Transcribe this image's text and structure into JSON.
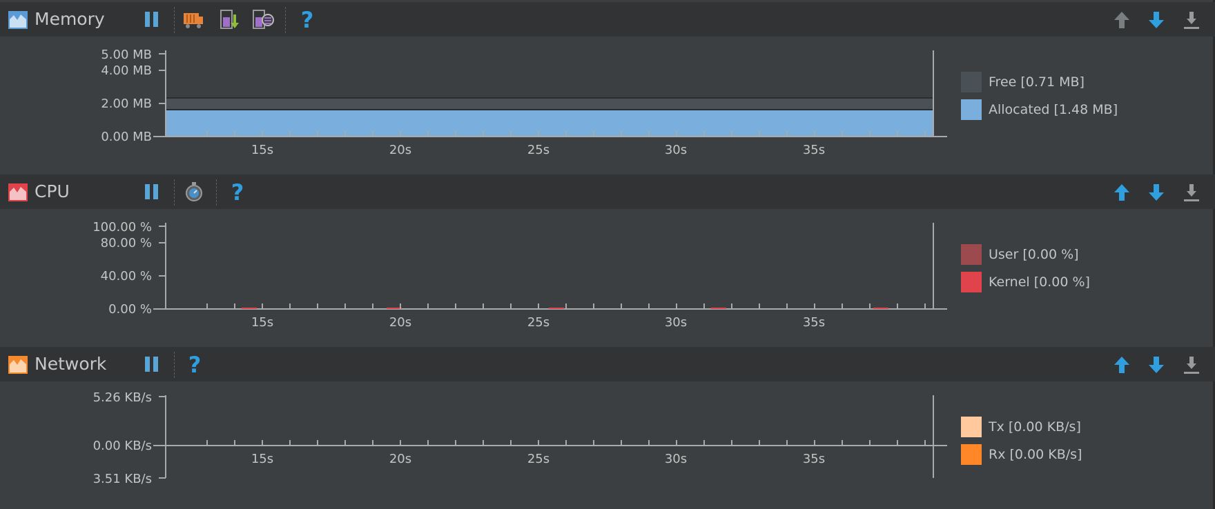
{
  "colors": {
    "background": "#3c3f41",
    "header": "#313335",
    "memory_accent": "#5b9bd5",
    "cpu_accent": "#e0434b",
    "network_accent": "#f58a2f",
    "toolbar_blue": "#2f9fe0"
  },
  "memory": {
    "title": "Memory",
    "icons": [
      "memory-chart-icon",
      "pause-icon",
      "gc-truck-icon",
      "dump-java-heap-icon",
      "allocation-tracker-icon",
      "help-icon"
    ],
    "legend": [
      {
        "label": "Free [0.71 MB]",
        "color": "#4a5156"
      },
      {
        "label": "Allocated [1.48 MB]",
        "color": "#7aaedd"
      }
    ]
  },
  "cpu": {
    "title": "CPU",
    "icons": [
      "cpu-chart-icon",
      "pause-icon",
      "method-trace-icon",
      "help-icon"
    ],
    "legend": [
      {
        "label": "User [0.00 %]",
        "color": "#9c4a4e"
      },
      {
        "label": "Kernel [0.00 %]",
        "color": "#e0434b"
      }
    ]
  },
  "network": {
    "title": "Network",
    "icons": [
      "network-chart-icon",
      "pause-icon",
      "help-icon"
    ],
    "legend": [
      {
        "label": "Tx [0.00 KB/s]",
        "color": "#ffc99d"
      },
      {
        "label": "Rx [0.00 KB/s]",
        "color": "#ff8728"
      }
    ]
  },
  "chart_data": [
    {
      "type": "area",
      "name": "memory",
      "x_ticks": [
        "15s",
        "20s",
        "25s",
        "30s",
        "35s"
      ],
      "y_ticks": [
        "5.00 MB",
        "4.00 MB",
        "2.00 MB",
        "0.00 MB"
      ],
      "ylim": [
        0,
        5
      ],
      "series": [
        {
          "name": "Free",
          "values": [
            0.71
          ]
        },
        {
          "name": "Allocated",
          "values": [
            1.48
          ]
        }
      ]
    },
    {
      "type": "area",
      "name": "cpu",
      "x_ticks": [
        "15s",
        "20s",
        "25s",
        "30s",
        "35s"
      ],
      "y_ticks": [
        "100.00 %",
        "80.00 %",
        "40.00 %",
        "0.00 %"
      ],
      "ylim": [
        0,
        100
      ],
      "series": [
        {
          "name": "User",
          "values": [
            0.0
          ]
        },
        {
          "name": "Kernel",
          "values": [
            0.0
          ]
        }
      ]
    },
    {
      "type": "area",
      "name": "network",
      "x_ticks": [
        "15s",
        "20s",
        "25s",
        "30s",
        "35s"
      ],
      "y_ticks": [
        "5.26 KB/s",
        "0.00 KB/s",
        "3.51 KB/s"
      ],
      "series": [
        {
          "name": "Tx",
          "values": [
            0.0
          ]
        },
        {
          "name": "Rx",
          "values": [
            0.0
          ]
        }
      ]
    }
  ]
}
